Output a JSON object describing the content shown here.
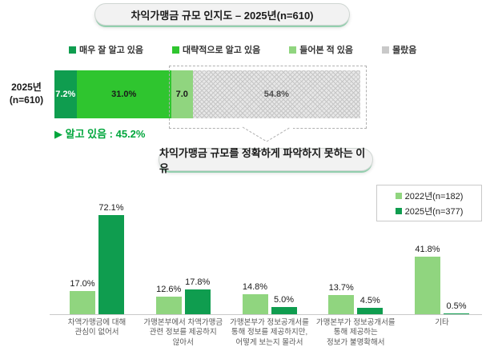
{
  "colors": {
    "very_well": "#0f9d4f",
    "roughly": "#2fc52f",
    "heard_of": "#90d57f",
    "did_not_know_hatch_base": "#e7e7e7",
    "note_green": "#00a63c",
    "pill_shadow_green": "#93cfae"
  },
  "top_chart": {
    "title_ref": "see chart_data.0.title",
    "row_label": "2025년\n(n=610)"
  },
  "chart_data": [
    {
      "type": "bar",
      "subtype": "horizontal-stacked",
      "title": "차익가맹금 규모 인지도 – 2025년(n=610)",
      "categories": [
        "2025년\n(n=610)"
      ],
      "series": [
        {
          "name": "매우 잘 알고 있음",
          "values": [
            7.2
          ],
          "display": "7.2%",
          "color": "#0f9d4f",
          "label_color": "#ffffff"
        },
        {
          "name": "대략적으로 알고 있음",
          "values": [
            31.0
          ],
          "display": "31.0%",
          "color": "#2fc52f",
          "label_color": "#1a1a1a"
        },
        {
          "name": "들어본 적 있음",
          "values": [
            7.0
          ],
          "display": "7.0",
          "color": "#90d57f",
          "label_color": "#1a1a1a"
        },
        {
          "name": "몰랐음",
          "values": [
            54.8
          ],
          "display": "54.8%",
          "color": "hatch",
          "label_color": "#4d4d4d"
        }
      ],
      "annotation": "▶ 알고 있음 : 45.2%",
      "xlim": [
        0,
        100
      ],
      "legend_position": "top",
      "grid": false
    },
    {
      "type": "bar",
      "subtype": "grouped-vertical",
      "title": "차익가맹금 규모를 정확하게 파악하지 못하는 이유",
      "categories": [
        "차액가맹금에 대해\n관심이 없어서",
        "가맹본부에서 차액가맹금\n관련 정보를 제공하지\n않아서",
        "가맹본부가 정보공개서를\n통해 정보를 제공하지만,\n어떻게 보는지 몰라서",
        "가맹본부가 정보공개서를\n통해 제공하는\n정보가 불명확해서",
        "기타"
      ],
      "series": [
        {
          "name": "2022년(n=182)",
          "color": "#90d57f",
          "values": [
            17.0,
            12.6,
            14.8,
            13.7,
            41.8
          ],
          "displays": [
            "17.0%",
            "12.6%",
            "14.8%",
            "13.7%",
            "41.8%"
          ]
        },
        {
          "name": "2025년(n=377)",
          "color": "#0f9d4f",
          "values": [
            72.1,
            17.8,
            5.0,
            4.5,
            0.5
          ],
          "displays": [
            "72.1%",
            "17.8%",
            "5.0%",
            "4.5%",
            "0.5%"
          ]
        }
      ],
      "ylim": [
        0,
        80
      ],
      "legend_position": "top-right",
      "grid": false
    }
  ]
}
